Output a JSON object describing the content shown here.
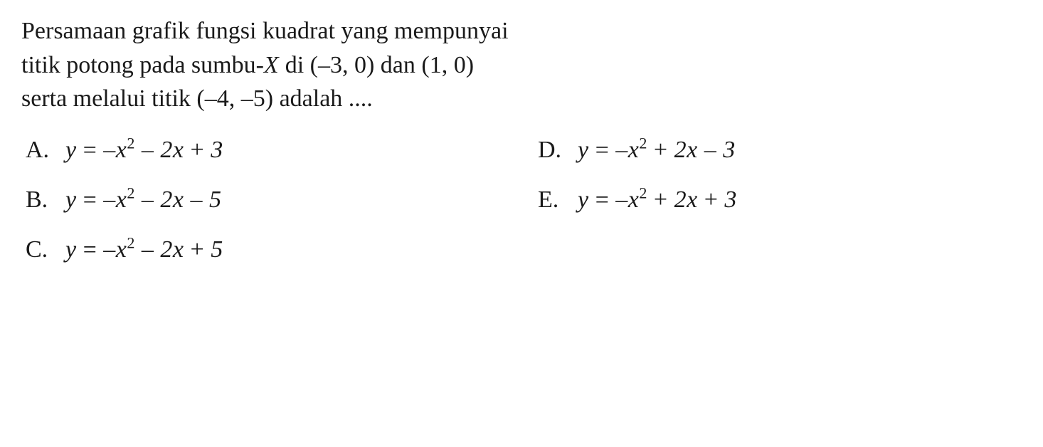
{
  "question": {
    "line1": "Persamaan grafik fungsi kuadrat yang mempunyai",
    "line2_prefix": "titik potong pada sumbu-",
    "line2_x": "X",
    "line2_mid": " di (–3, 0) dan (1, 0)",
    "line3": "serta melalui titik (–4, –5) adalah ...."
  },
  "options": {
    "A": {
      "label": "A.",
      "y": "y",
      "eq": "=",
      "rhs": "–x² – 2x + 3"
    },
    "B": {
      "label": "B.",
      "y": "y",
      "eq": "=",
      "rhs": "–x² – 2x – 5"
    },
    "C": {
      "label": "C.",
      "y": "y",
      "eq": "=",
      "rhs": "–x² – 2x + 5"
    },
    "D": {
      "label": "D.",
      "y": "y",
      "eq": "=",
      "rhs": "–x² + 2x – 3"
    },
    "E": {
      "label": "E.",
      "y": "y",
      "eq": "=",
      "rhs": "–x² + 2x + 3"
    }
  },
  "style": {
    "font_family": "Times New Roman",
    "font_size_pt": 26,
    "text_color": "#1a1a1a",
    "background_color": "#ffffff"
  }
}
